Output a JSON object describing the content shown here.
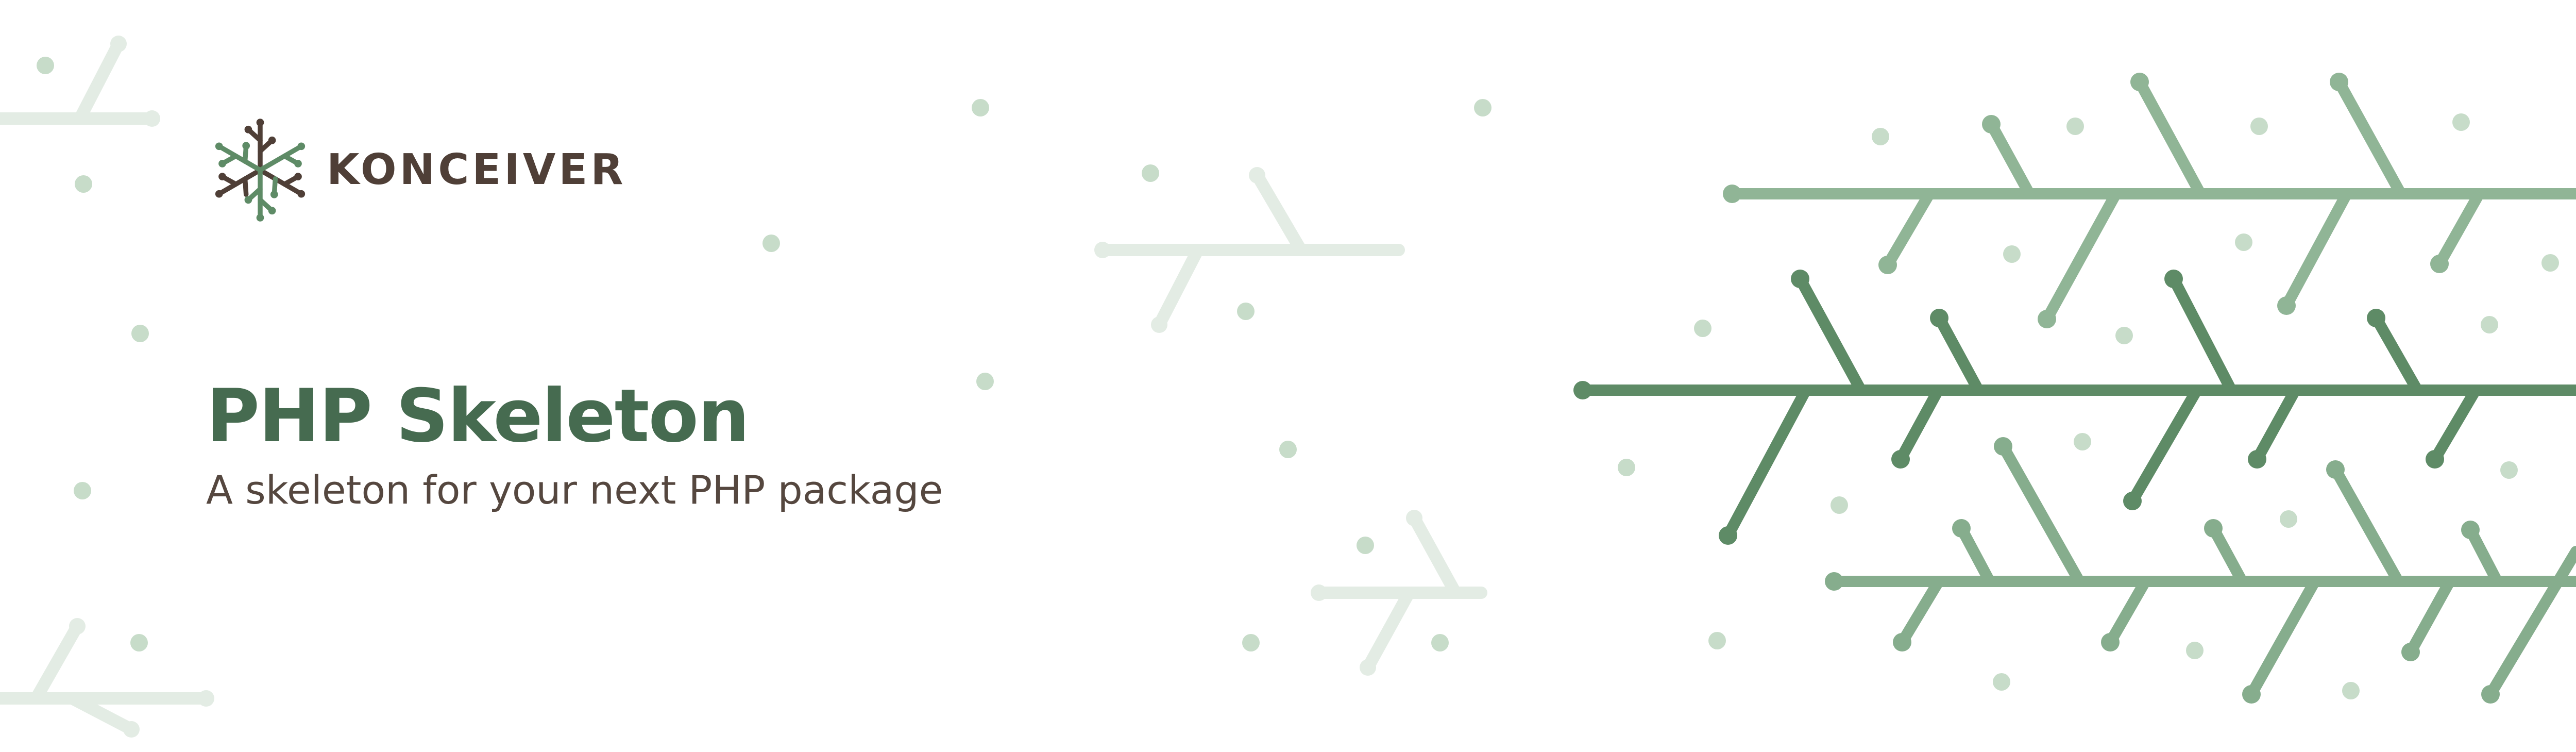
{
  "brand": {
    "name": "KONCEIVER",
    "logo_icon": "konceiver-snowflake-logo-icon"
  },
  "hero": {
    "title": "PHP Skeleton",
    "subtitle": "A skeleton for your next PHP package"
  },
  "background": {
    "pattern_icon": "branch-circuit-pattern-icon"
  },
  "colors": {
    "background": "#ffffff",
    "title_green": "#466b50",
    "brand_brown": "#4f3f37",
    "subtitle_brown": "#55473f",
    "branch_dark": "#5f8c67",
    "branch_mid": "#8fb596",
    "dot_light": "#c9ddcb",
    "faded_branch": "#e2ebe3"
  }
}
